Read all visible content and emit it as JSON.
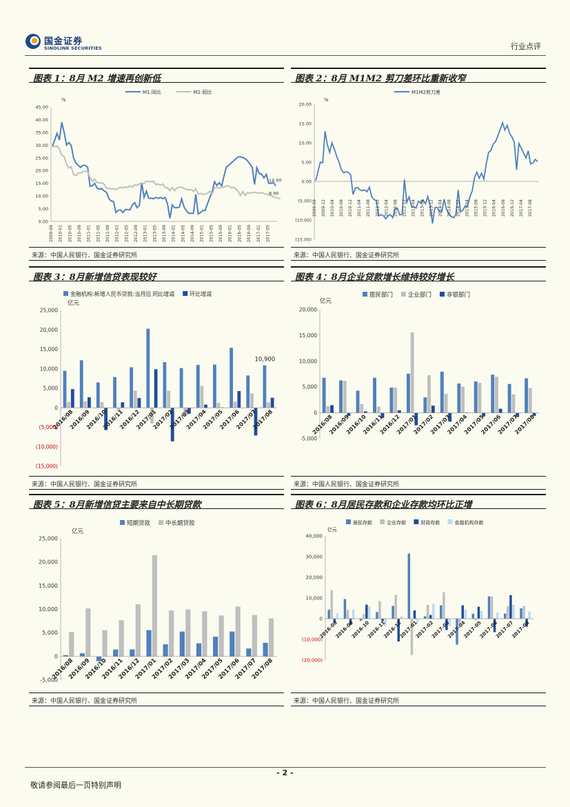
{
  "header": {
    "brand_cn": "国金证券",
    "brand_en": "SINOLINK SECURITIES",
    "doc_type": "行业点评"
  },
  "footer": {
    "page": "- 2 -",
    "note": "敬请参阅最后一页特别声明"
  },
  "colors": {
    "blue": "#4f81bd",
    "gray": "#bfbfbf",
    "navy": "#1f4e9c",
    "light": "#b7dff2"
  },
  "panels": [
    {
      "title": "图表 1：8月 M2 增速再创新低",
      "source": "来源：中国人民银行、国金证券研究所"
    },
    {
      "title": "图表 2：8月 M1M2 剪刀差环比重新收窄",
      "source": "来源：中国人民银行、国金证券研究所"
    },
    {
      "title": "图表 3：8月新增信贷表现较好",
      "source": "来源：中国人民银行、国金证券研究所"
    },
    {
      "title": "图表 4：8月企业贷款增长维持较好增长",
      "source": "来源：中国人民银行、国金证券研究所"
    },
    {
      "title": "图表 5：8月新增信贷主要来自中长期贷款",
      "source": "来源：中国人民银行、国金证券研究所"
    },
    {
      "title": "图表 6：8月居民存款和企业存款均环比正增",
      "source": "来源：中国人民银行、国金证券研究所"
    }
  ],
  "chart_data": [
    {
      "type": "line",
      "unit": "%",
      "ylim": [
        0,
        45
      ],
      "yticks": [
        "0.00",
        "5.00",
        "10.00",
        "15.00",
        "20.00",
        "25.00",
        "30.00",
        "35.00",
        "40.00",
        "45.00"
      ],
      "xticks": [
        "2009-09",
        "2010-01",
        "2010-05",
        "2010-09",
        "2011-01",
        "2011-05",
        "2011-09",
        "2012-01",
        "2012-05",
        "2012-09",
        "2013-01",
        "2013-05",
        "2013-09",
        "2014-01",
        "2014-05",
        "2014-09",
        "2015-01",
        "2015-05",
        "2015-09",
        "2016-01",
        "2016-05",
        "2016-09",
        "2017-01",
        "2017-05"
      ],
      "annotations": [
        "14.00",
        "8.90"
      ],
      "series": [
        {
          "name": "M1:同比",
          "color": "#4f81bd",
          "values": [
            29.5,
            32.0,
            34.6,
            32.0,
            39.0,
            35.0,
            30.0,
            31.0,
            29.9,
            25.0,
            23.0,
            22.0,
            21.2,
            22.0,
            22.0,
            21.2,
            13.8,
            14.0,
            15.0,
            13.1,
            12.7,
            12.9,
            12.0,
            11.5,
            9.0,
            8.0,
            7.9,
            3.5,
            4.4,
            4.5,
            3.5,
            4.6,
            4.7,
            4.5,
            6.5,
            7.4,
            5.4,
            6.3,
            15.3,
            9.5,
            11.9,
            9.1,
            9.1,
            8.9,
            9.4,
            9.1,
            9.4,
            8.9,
            9.4,
            6.8,
            1.2,
            6.5,
            5.4,
            5.4,
            5.6,
            8.9,
            5.7,
            4.2,
            3.2,
            3.2,
            3.2,
            10.6,
            2.9,
            3.5,
            4.3,
            4.3,
            7.0,
            9.4,
            11.8,
            15.6,
            14.1,
            15.2,
            13.9,
            17.9,
            21.4,
            22.0,
            22.9,
            23.7,
            24.6,
            25.3,
            25.4,
            25.1,
            24.7,
            23.8,
            22.6,
            21.4,
            14.5,
            21.1,
            18.8,
            18.6,
            17.1,
            18.5,
            15.0,
            15.0,
            15.3,
            14.0
          ]
        },
        {
          "name": "M2:同比",
          "color": "#bfbfbf",
          "values": [
            29.3,
            29.4,
            29.7,
            28.4,
            26.0,
            25.5,
            22.5,
            21.0,
            21.5,
            18.5,
            18.0,
            19.0,
            19.0,
            19.5,
            19.7,
            19.5,
            17.2,
            15.7,
            16.6,
            15.3,
            15.1,
            15.1,
            14.7,
            13.0,
            13.0,
            12.7,
            12.9,
            12.4,
            13.0,
            13.4,
            13.2,
            13.5,
            13.3,
            13.9,
            13.5,
            14.4,
            14.1,
            14.8,
            14.8,
            14.9,
            15.9,
            15.6,
            15.7,
            15.8,
            14.5,
            14.7,
            14.2,
            14.7,
            13.3,
            13.2,
            12.1,
            13.3,
            12.1,
            13.2,
            13.4,
            13.5,
            12.9,
            12.6,
            12.3,
            12.6,
            11.8,
            12.8,
            10.8,
            11.0,
            10.6,
            10.8,
            11.0,
            11.9,
            10.8,
            13.2,
            13.3,
            13.1,
            13.3,
            13.5,
            13.9,
            14.0,
            13.2,
            13.4,
            12.8,
            11.8,
            10.2,
            11.8,
            10.2,
            11.3,
            11.1,
            11.3,
            11.5,
            11.3,
            11.1,
            11.3,
            11.0,
            10.6,
            10.5,
            10.2,
            9.6,
            9.4,
            9.2,
            8.9
          ]
        }
      ]
    },
    {
      "type": "line",
      "ylim": [
        -15,
        20
      ],
      "yticks": [
        "(15.00)",
        "(10.00)",
        "(5.00)",
        "0.00",
        "5.00",
        "10.00",
        "15.00",
        "20.00"
      ],
      "xticks": [
        "2009-09",
        "2009-12",
        "2010-04",
        "2010-08",
        "2010-12",
        "2011-04",
        "2011-08",
        "2011-12",
        "2012-04",
        "2012-08",
        "2012-12",
        "2013-04",
        "2013-08",
        "2013-12",
        "2014-04",
        "2014-08",
        "2014-12",
        "2015-04",
        "2015-08",
        "2015-12",
        "2016-04",
        "2016-08",
        "2016-12",
        "2017-04",
        "2017-08"
      ],
      "series": [
        {
          "name": "M1M2剪刀差",
          "color": "#4f81bd",
          "values": [
            0.2,
            2.6,
            5.0,
            4.8,
            13.0,
            9.5,
            7.5,
            10.0,
            8.4,
            6.5,
            5.0,
            3.0,
            2.2,
            2.5,
            2.3,
            1.7,
            -3.4,
            -1.7,
            -1.6,
            -2.2,
            -2.4,
            -2.2,
            -2.7,
            -1.5,
            -4.0,
            -4.7,
            -5.0,
            -8.9,
            -8.6,
            -8.9,
            -9.7,
            -8.9,
            -8.6,
            -9.4,
            -7.0,
            -7.0,
            -8.7,
            -8.5,
            0.5,
            -5.4,
            -4.0,
            -6.5,
            -6.6,
            -6.9,
            -5.1,
            -5.6,
            -4.8,
            -5.8,
            -3.9,
            -6.4,
            -10.9,
            -6.8,
            -6.7,
            -7.8,
            -7.8,
            -4.6,
            -7.2,
            -8.4,
            -9.1,
            -9.4,
            -8.6,
            -2.2,
            -7.9,
            -7.5,
            -6.3,
            -6.5,
            -4.0,
            -2.5,
            1.0,
            2.4,
            0.8,
            2.1,
            0.6,
            4.4,
            7.5,
            8.0,
            9.7,
            10.3,
            11.8,
            13.5,
            15.2,
            13.3,
            14.5,
            12.5,
            11.5,
            10.1,
            3.0,
            9.8,
            8.6,
            7.3,
            6.1,
            7.9,
            4.5,
            4.8,
            5.7,
            5.1
          ]
        }
      ]
    },
    {
      "type": "bar",
      "unit": "亿元",
      "ylim": [
        -15000,
        25000
      ],
      "yticks": [
        "(15,000)",
        "(10,000)",
        "(5,000)",
        "0",
        "5,000",
        "10,000",
        "15,000",
        "20,000",
        "25,000"
      ],
      "categories": [
        "2016/08",
        "2016/09",
        "2016/10",
        "2016/11",
        "2016/12",
        "2017/01",
        "2017/02",
        "2017/03",
        "2017/04",
        "2017/05",
        "2017/06",
        "2017/07",
        "2017/08"
      ],
      "annotation": "10,900",
      "series": [
        {
          "name": "金融机构:新增人民币贷款:当月值",
          "color": "#4f81bd",
          "values": [
            9500,
            12200,
            6500,
            7900,
            10400,
            20300,
            11700,
            10200,
            11000,
            11100,
            15400,
            8300,
            10900
          ]
        },
        {
          "name": "同比增减",
          "color": "#bfbfbf",
          "values": [
            1500,
            1700,
            1500,
            -800,
            4400,
            -4000,
            4400,
            -2200,
            5600,
            1300,
            1600,
            3700,
            1400
          ]
        },
        {
          "name": "环比增减",
          "color": "#1f4e9c",
          "values": [
            4800,
            2700,
            -5700,
            1400,
            2500,
            9900,
            -8600,
            -1500,
            800,
            100,
            4300,
            -7100,
            2600
          ]
        }
      ]
    },
    {
      "type": "bar",
      "unit": "亿元",
      "ylim": [
        -5000,
        20000
      ],
      "yticks": [
        "-5,000",
        "0",
        "5,000",
        "10,000",
        "15,000",
        "20,000"
      ],
      "categories": [
        "2016/08",
        "2016/09",
        "2016/10",
        "2016/11",
        "2016/12",
        "2017/01",
        "2017/02",
        "2017/03",
        "2017/04",
        "2017/05",
        "2017/06",
        "2017/07",
        "2017/08"
      ],
      "series": [
        {
          "name": "居民部门",
          "color": "#4f81bd",
          "values": [
            6800,
            6300,
            4300,
            6800,
            4900,
            7600,
            3000,
            8000,
            5700,
            6100,
            7400,
            5600,
            6700
          ]
        },
        {
          "name": "企业部门",
          "color": "#bfbfbf",
          "values": [
            1300,
            6200,
            1700,
            1200,
            4900,
            15600,
            7300,
            3700,
            5100,
            5800,
            7000,
            3600,
            4800
          ]
        },
        {
          "name": "非银部门",
          "color": "#1f4e9c",
          "values": [
            1500,
            -600,
            300,
            -1000,
            500,
            -2400,
            1400,
            -1700,
            100,
            -700,
            800,
            -800,
            -600
          ]
        }
      ]
    },
    {
      "type": "bar",
      "unit": "亿元",
      "ylim": [
        -5000,
        25000
      ],
      "yticks": [
        "-5,000",
        "0",
        "5,000",
        "10,000",
        "15,000",
        "20,000",
        "25,000"
      ],
      "categories": [
        "2016/08",
        "2016/09",
        "2016/10",
        "2016/11",
        "2016/12",
        "2017/01",
        "2017/02",
        "2017/03",
        "2017/04",
        "2017/05",
        "2017/06",
        "2017/07",
        "2017/08"
      ],
      "series": [
        {
          "name": "短期贷款",
          "color": "#4f81bd",
          "values": [
            300,
            700,
            -1000,
            1500,
            1500,
            5600,
            2600,
            5300,
            2800,
            4200,
            5300,
            1700,
            2900
          ]
        },
        {
          "name": "中长期贷款",
          "color": "#bfbfbf",
          "values": [
            5200,
            10200,
            5600,
            7700,
            11100,
            21500,
            9800,
            10000,
            9600,
            8700,
            10600,
            8800,
            8100
          ]
        }
      ]
    },
    {
      "type": "bar",
      "unit": "亿元",
      "ylim": [
        -20000,
        40000
      ],
      "yticks": [
        "(20,000)",
        "(10,000)",
        "0",
        "10,000",
        "20,000",
        "30,000",
        "40,000"
      ],
      "categories": [
        "2016-08",
        "2016-09",
        "2016-10",
        "2016-11",
        "2016-12",
        "2017-01",
        "2017-02",
        "2017-03",
        "2017-04",
        "2017-05",
        "2017-06",
        "2017-07",
        "2017-08"
      ],
      "series": [
        {
          "name": "居民存款",
          "color": "#4f81bd",
          "values": [
            4300,
            9500,
            -1000,
            3200,
            6200,
            31500,
            1200,
            6500,
            -12500,
            2400,
            10800,
            2500,
            5000
          ]
        },
        {
          "name": "企业存款",
          "color": "#bfbfbf",
          "values": [
            13800,
            4200,
            2200,
            8500,
            11500,
            -17500,
            6700,
            12800,
            -2500,
            -800,
            10700,
            6000,
            6200
          ]
        },
        {
          "name": "财政存款",
          "color": "#1f4e9c",
          "values": [
            -1800,
            -3000,
            6800,
            -1200,
            -11000,
            4000,
            1800,
            -5500,
            6500,
            5800,
            -6500,
            11400,
            -3800
          ]
        },
        {
          "name": "金融机构存款",
          "color": "#b7dff2",
          "values": [
            2800,
            4500,
            5900,
            -3500,
            1200,
            -2000,
            7200,
            -3500,
            4500,
            3800,
            3000,
            6700,
            3500
          ]
        }
      ]
    }
  ]
}
